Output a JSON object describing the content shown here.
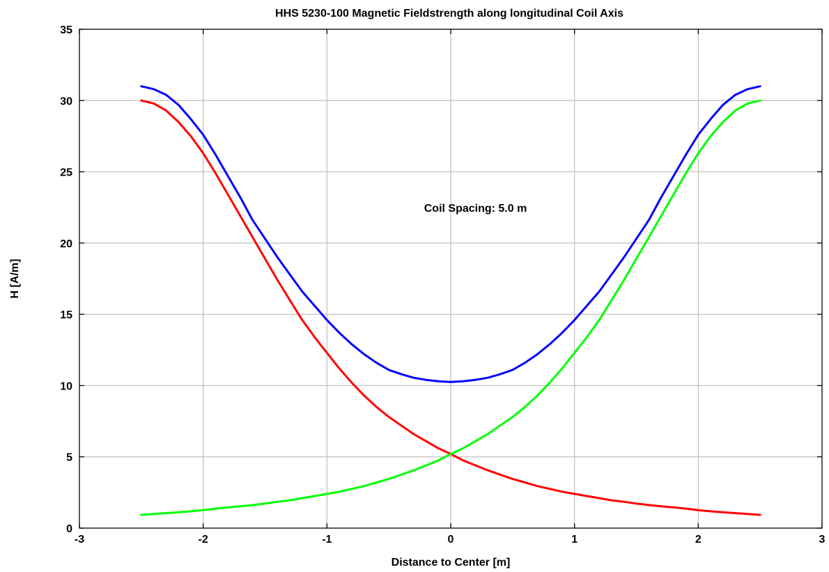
{
  "chart_data": {
    "type": "line",
    "title": "HHS 5230-100 Magnetic Fieldstrength along longitudinal Coil Axis",
    "xlabel": "Distance to Center [m]",
    "ylabel": "H [A/m]",
    "xlim": [
      -3,
      3
    ],
    "ylim": [
      0,
      35
    ],
    "xticks": [
      -3,
      -2,
      -1,
      0,
      1,
      2,
      3
    ],
    "xtick_labels": [
      "-3",
      "-2",
      "-1",
      "0",
      "1",
      "2",
      "3"
    ],
    "yticks": [
      0,
      5,
      10,
      15,
      20,
      25,
      30,
      35
    ],
    "ytick_labels": [
      "0",
      "5",
      "10",
      "15",
      "20",
      "25",
      "30",
      "35"
    ],
    "grid": true,
    "annotation": {
      "text": "Coil Spacing: 5.0 m",
      "x": 0.2,
      "y": 22.2
    },
    "x": [
      -2.5,
      -2.4,
      -2.3,
      -2.2,
      -2.1,
      -2.0,
      -1.9,
      -1.8,
      -1.7,
      -1.6,
      -1.5,
      -1.4,
      -1.3,
      -1.2,
      -1.1,
      -1.0,
      -0.9,
      -0.8,
      -0.7,
      -0.6,
      -0.5,
      -0.4,
      -0.3,
      -0.2,
      -0.1,
      0.0,
      0.1,
      0.2,
      0.3,
      0.4,
      0.5,
      0.6,
      0.7,
      0.8,
      0.9,
      1.0,
      1.1,
      1.2,
      1.3,
      1.4,
      1.5,
      1.6,
      1.7,
      1.8,
      1.9,
      2.0,
      2.1,
      2.2,
      2.3,
      2.4,
      2.5
    ],
    "series": [
      {
        "color": "#0000ff",
        "values": [
          31.0,
          30.8,
          30.4,
          29.7,
          28.7,
          27.6,
          26.2,
          24.7,
          23.2,
          21.6,
          20.3,
          19.0,
          17.8,
          16.6,
          15.6,
          14.6,
          13.7,
          12.9,
          12.2,
          11.6,
          11.1,
          10.8,
          10.55,
          10.4,
          10.3,
          10.25,
          10.3,
          10.4,
          10.55,
          10.8,
          11.1,
          11.6,
          12.2,
          12.9,
          13.7,
          14.6,
          15.6,
          16.6,
          17.8,
          19.0,
          20.3,
          21.6,
          23.2,
          24.7,
          26.2,
          27.6,
          28.7,
          29.7,
          30.4,
          30.8,
          31.0
        ]
      },
      {
        "color": "#ff0000",
        "values": [
          30.0,
          29.8,
          29.3,
          28.5,
          27.5,
          26.3,
          24.9,
          23.4,
          21.9,
          20.4,
          18.9,
          17.4,
          16.0,
          14.6,
          13.4,
          12.3,
          11.2,
          10.2,
          9.3,
          8.5,
          7.8,
          7.2,
          6.6,
          6.1,
          5.6,
          5.2,
          4.75,
          4.4,
          4.05,
          3.75,
          3.45,
          3.2,
          2.95,
          2.75,
          2.55,
          2.4,
          2.25,
          2.1,
          1.95,
          1.85,
          1.72,
          1.62,
          1.53,
          1.45,
          1.37,
          1.26,
          1.18,
          1.11,
          1.05,
          0.99,
          0.93
        ]
      },
      {
        "color": "#00ff00",
        "values": [
          0.93,
          0.99,
          1.05,
          1.11,
          1.18,
          1.26,
          1.37,
          1.45,
          1.53,
          1.62,
          1.72,
          1.85,
          1.95,
          2.1,
          2.25,
          2.4,
          2.55,
          2.75,
          2.95,
          3.2,
          3.45,
          3.75,
          4.05,
          4.4,
          4.75,
          5.2,
          5.6,
          6.1,
          6.6,
          7.2,
          7.8,
          8.5,
          9.3,
          10.2,
          11.2,
          12.3,
          13.4,
          14.6,
          16.0,
          17.4,
          18.9,
          20.4,
          21.9,
          23.4,
          24.9,
          26.3,
          27.5,
          28.5,
          29.3,
          29.8,
          30.0
        ]
      }
    ]
  }
}
